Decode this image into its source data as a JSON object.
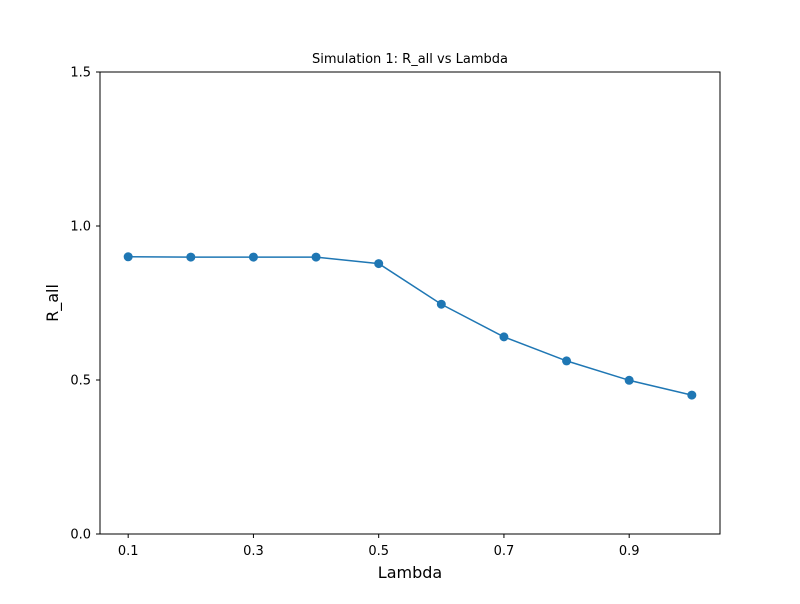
{
  "chart_data": {
    "type": "line",
    "title": "Simulation 1: R_all vs Lambda",
    "xlabel": "Lambda",
    "ylabel": "R_all",
    "x": [
      0.1,
      0.2,
      0.3,
      0.4,
      0.5,
      0.6,
      0.7,
      0.8,
      0.9,
      1.0
    ],
    "series": [
      {
        "values": [
          0.9,
          0.899,
          0.899,
          0.899,
          0.878,
          0.746,
          0.64,
          0.562,
          0.499,
          0.451
        ],
        "color": "#1f77b4",
        "marker": "circle"
      }
    ],
    "xlim": [
      0.055,
      1.045
    ],
    "ylim": [
      0.0,
      1.5
    ],
    "xticks": [
      0.1,
      0.3,
      0.5,
      0.7,
      0.9
    ],
    "xtick_labels": [
      "0.1",
      "0.3",
      "0.5",
      "0.7",
      "0.9"
    ],
    "yticks": [
      0.0,
      0.5,
      1.0,
      1.5
    ],
    "ytick_labels": [
      "0.0",
      "0.5",
      "1.0",
      "1.5"
    ],
    "grid": false,
    "legend": false
  }
}
